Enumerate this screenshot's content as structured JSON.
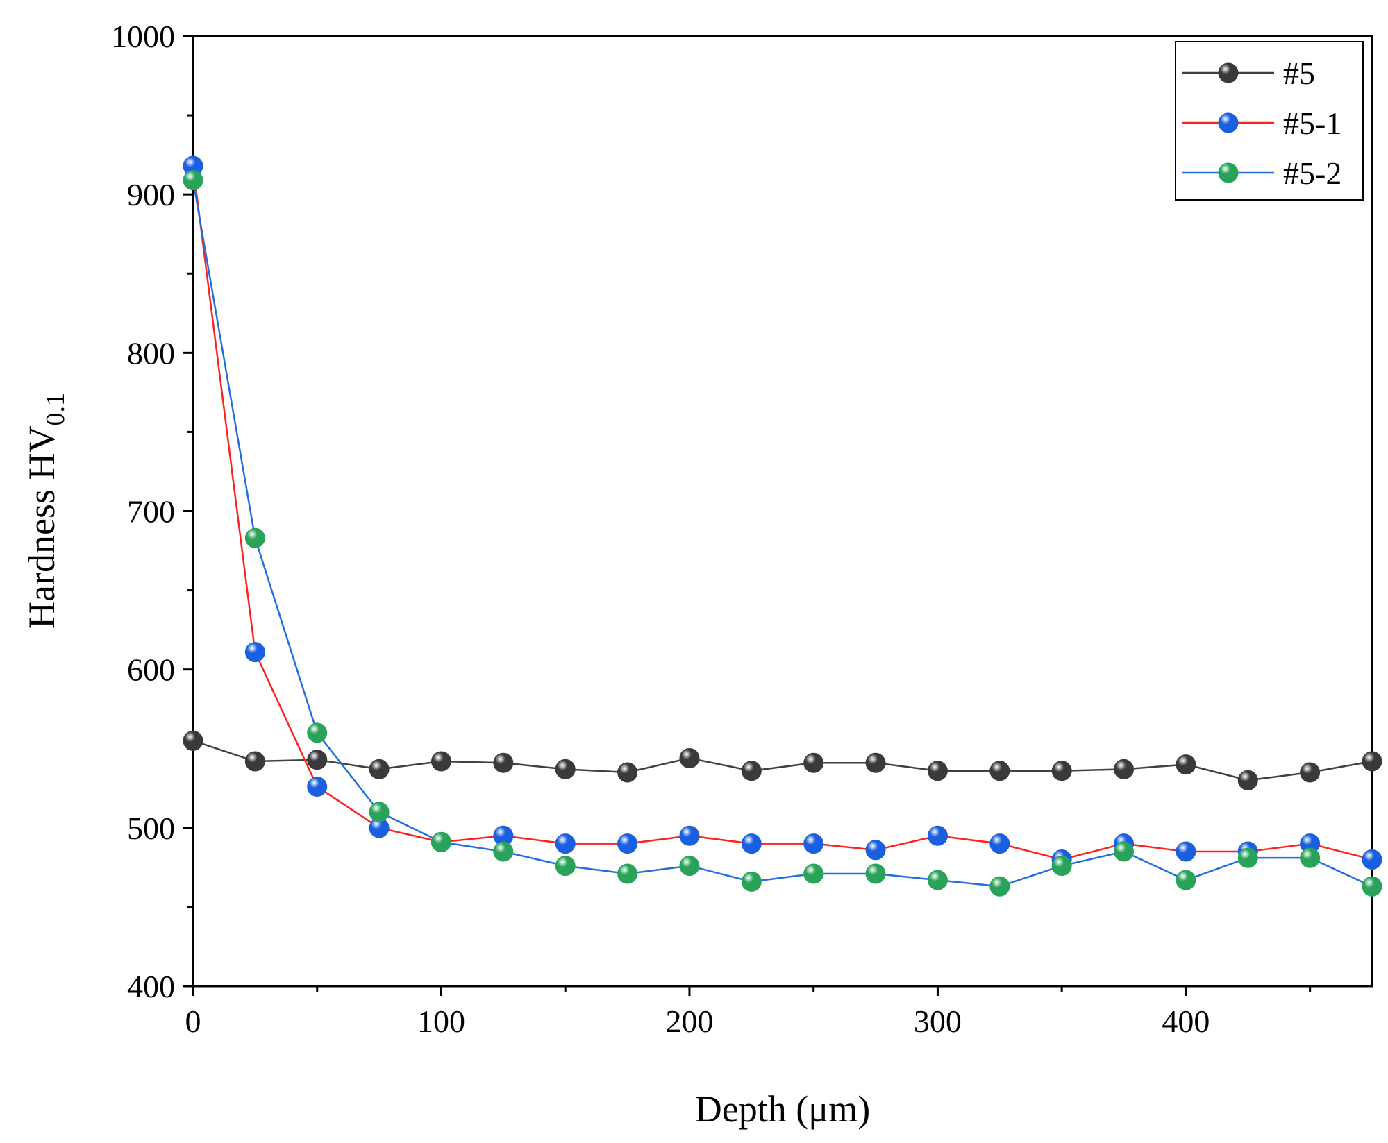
{
  "chart_data": {
    "type": "line",
    "title": "",
    "xlabel": "Depth (μm)",
    "ylabel": "Hardness HV",
    "ylabel_subscript": "0.1",
    "xlim": [
      0,
      475
    ],
    "ylim": [
      400,
      1000
    ],
    "xticks": [
      0,
      100,
      200,
      300,
      400
    ],
    "yticks": [
      400,
      500,
      600,
      700,
      800,
      900,
      1000
    ],
    "x": [
      0,
      25,
      50,
      75,
      100,
      125,
      150,
      175,
      200,
      225,
      250,
      275,
      300,
      325,
      350,
      375,
      400,
      425,
      450,
      475
    ],
    "legend_position": "top-right",
    "series": [
      {
        "name": "#5",
        "line_color": "#404040",
        "marker_color": "#3a3a3a",
        "values": [
          555,
          542,
          543,
          537,
          542,
          541,
          537,
          535,
          544,
          536,
          541,
          541,
          536,
          536,
          536,
          537,
          540,
          530,
          535,
          542
        ]
      },
      {
        "name": "#5-1",
        "line_color": "#ff2020",
        "marker_color": "#1a5fe0",
        "values": [
          918,
          611,
          526,
          500,
          491,
          495,
          490,
          490,
          495,
          490,
          490,
          486,
          495,
          490,
          480,
          490,
          485,
          485,
          490,
          480
        ]
      },
      {
        "name": "#5-2",
        "line_color": "#1f6fe0",
        "marker_color": "#2aa35a",
        "values": [
          909,
          683,
          560,
          510,
          491,
          485,
          476,
          471,
          476,
          466,
          471,
          471,
          467,
          463,
          476,
          485,
          467,
          481,
          481,
          463
        ]
      }
    ]
  }
}
